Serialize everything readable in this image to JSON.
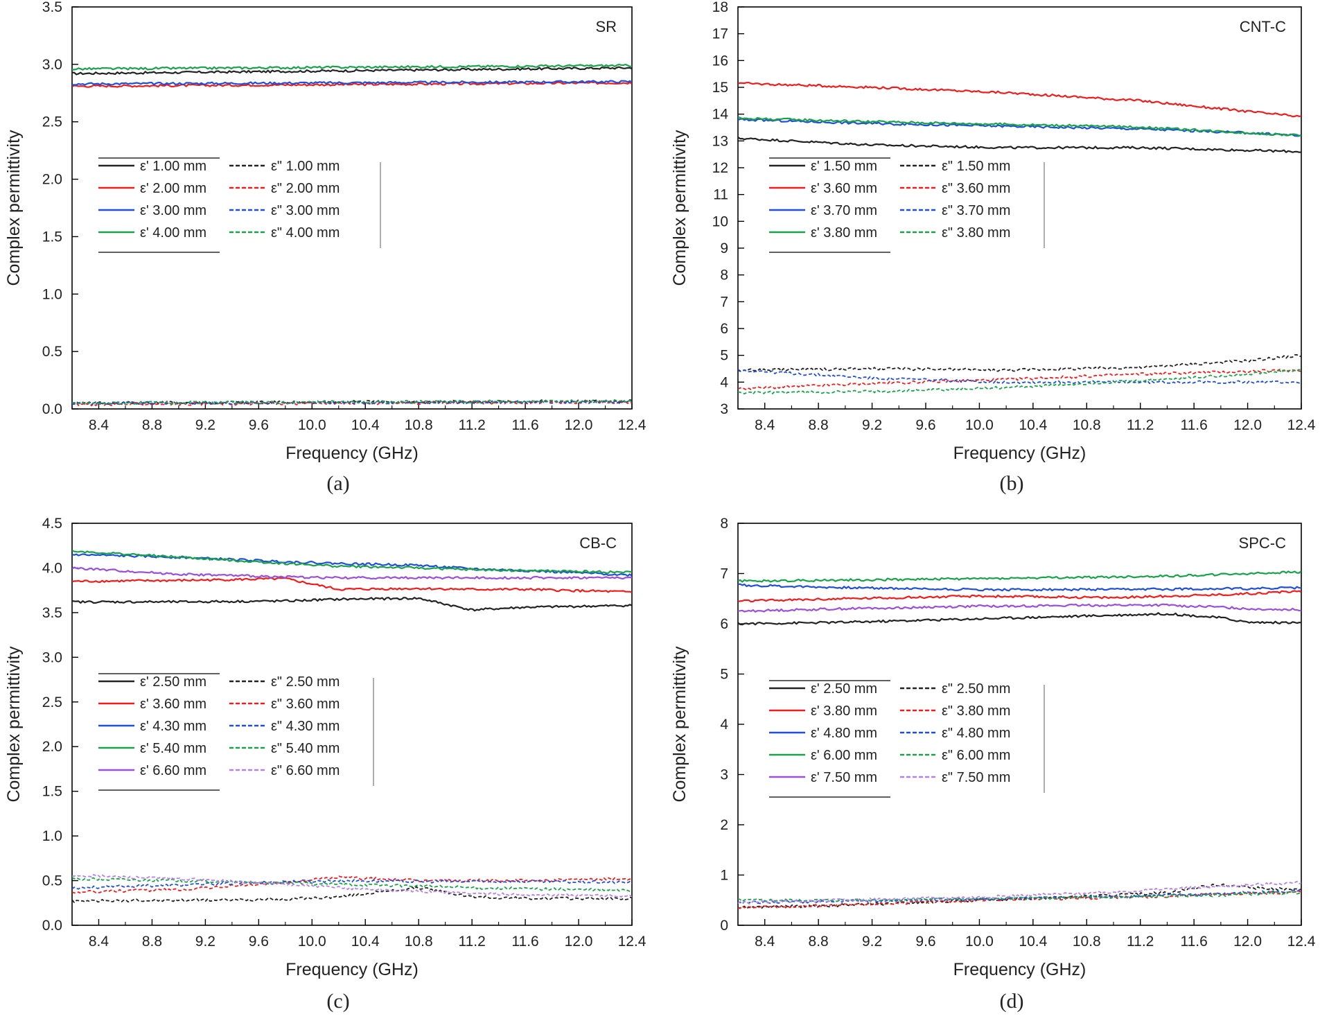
{
  "chart_data": [
    {
      "type": "line",
      "panel": "a",
      "caption": "(a)",
      "title": "SR",
      "xlabel": "Frequency (GHz)",
      "ylabel": "Complex permittivity",
      "xlim": [
        8.2,
        12.4
      ],
      "ylim": [
        0,
        3.5
      ],
      "xticks": [
        "8.4",
        "8.8",
        "9.2",
        "9.6",
        "10.0",
        "10.4",
        "10.8",
        "11.2",
        "11.6",
        "12.0",
        "12.4"
      ],
      "yticks": [
        "0.0",
        "0.5",
        "1.0",
        "1.5",
        "2.0",
        "2.5",
        "3.0",
        "3.5"
      ],
      "legend_placement": "center-left",
      "x": [
        8.2,
        12.4
      ],
      "series": [
        {
          "name": "ε' 1.00 mm",
          "color": "#222222",
          "dash": "solid",
          "values": [
            2.92,
            2.97
          ]
        },
        {
          "name": "ε' 2.00 mm",
          "color": "#ee1c1c",
          "dash": "solid",
          "values": [
            2.81,
            2.84
          ]
        },
        {
          "name": "ε' 3.00 mm",
          "color": "#1f4fd8",
          "dash": "solid",
          "values": [
            2.83,
            2.85
          ]
        },
        {
          "name": "ε' 4.00 mm",
          "color": "#1aa24a",
          "dash": "solid",
          "values": [
            2.96,
            2.99
          ]
        },
        {
          "name": "ε\" 1.00 mm",
          "color": "#222222",
          "dash": "dashed",
          "values": [
            0.05,
            0.07
          ]
        },
        {
          "name": "ε\" 2.00 mm",
          "color": "#ee1c1c",
          "dash": "dashed",
          "values": [
            0.04,
            0.06
          ]
        },
        {
          "name": "ε\" 3.00 mm",
          "color": "#1f4fd8",
          "dash": "dashed",
          "values": [
            0.05,
            0.06
          ]
        },
        {
          "name": "ε\" 4.00 mm",
          "color": "#1aa24a",
          "dash": "dashed",
          "values": [
            0.05,
            0.07
          ]
        }
      ]
    },
    {
      "type": "line",
      "panel": "b",
      "caption": "(b)",
      "title": "CNT-C",
      "xlabel": "Frequency (GHz)",
      "ylabel": "Complex permittivity",
      "xlim": [
        8.2,
        12.4
      ],
      "ylim": [
        3,
        18
      ],
      "xticks": [
        "8.4",
        "8.8",
        "9.2",
        "9.6",
        "10.0",
        "10.4",
        "10.8",
        "11.2",
        "11.6",
        "12.0",
        "12.4"
      ],
      "yticks": [
        "3",
        "4",
        "5",
        "6",
        "7",
        "8",
        "9",
        "10",
        "11",
        "12",
        "13",
        "14",
        "15",
        "16",
        "17",
        "18"
      ],
      "legend_placement": "center-left",
      "x": [
        8.2,
        9.2,
        10.2,
        11.2,
        12.0,
        12.4
      ],
      "series": [
        {
          "name": "ε' 1.50 mm",
          "color": "#222222",
          "dash": "solid",
          "values": [
            13.1,
            12.85,
            12.75,
            12.75,
            12.65,
            12.6
          ]
        },
        {
          "name": "ε' 3.60 mm",
          "color": "#ee1c1c",
          "dash": "solid",
          "values": [
            15.15,
            15.0,
            14.8,
            14.5,
            14.1,
            13.9
          ]
        },
        {
          "name": "ε' 3.70 mm",
          "color": "#1f4fd8",
          "dash": "solid",
          "values": [
            13.8,
            13.65,
            13.55,
            13.45,
            13.3,
            13.2
          ]
        },
        {
          "name": "ε' 3.80 mm",
          "color": "#1aa24a",
          "dash": "solid",
          "values": [
            13.85,
            13.72,
            13.62,
            13.52,
            13.3,
            13.2
          ]
        },
        {
          "name": "ε\" 1.50 mm",
          "color": "#222222",
          "dash": "dashed",
          "values": [
            4.45,
            4.5,
            4.45,
            4.55,
            4.8,
            5.0
          ]
        },
        {
          "name": "ε\" 3.60 mm",
          "color": "#ee1c1c",
          "dash": "dashed",
          "values": [
            3.75,
            3.95,
            4.1,
            4.3,
            4.4,
            4.45
          ]
        },
        {
          "name": "ε\" 3.70 mm",
          "color": "#1f4fd8",
          "dash": "dashed",
          "values": [
            4.45,
            4.15,
            4.0,
            4.0,
            4.0,
            4.0
          ]
        },
        {
          "name": "ε\" 3.80 mm",
          "color": "#1aa24a",
          "dash": "dashed",
          "values": [
            3.6,
            3.65,
            3.8,
            4.05,
            4.3,
            4.45
          ]
        }
      ]
    },
    {
      "type": "line",
      "panel": "c",
      "caption": "(c)",
      "title": "CB-C",
      "xlabel": "Frequency (GHz)",
      "ylabel": "Complex permittivity",
      "xlim": [
        8.2,
        12.4
      ],
      "ylim": [
        0,
        4.5
      ],
      "xticks": [
        "8.4",
        "8.8",
        "9.2",
        "9.6",
        "10.0",
        "10.4",
        "10.8",
        "11.2",
        "11.6",
        "12.0",
        "12.4"
      ],
      "yticks": [
        "0.0",
        "0.5",
        "1.0",
        "1.5",
        "2.0",
        "2.5",
        "3.0",
        "3.5",
        "4.0",
        "4.5"
      ],
      "legend_placement": "center-left",
      "x": [
        8.2,
        9.0,
        9.8,
        10.2,
        10.8,
        11.2,
        11.6,
        12.4
      ],
      "series": [
        {
          "name": "ε' 2.50 mm",
          "color": "#222222",
          "dash": "solid",
          "values": [
            3.62,
            3.62,
            3.63,
            3.65,
            3.66,
            3.53,
            3.56,
            3.58
          ]
        },
        {
          "name": "ε' 3.60 mm",
          "color": "#ee1c1c",
          "dash": "solid",
          "values": [
            3.85,
            3.86,
            3.88,
            3.76,
            3.77,
            3.76,
            3.76,
            3.73
          ]
        },
        {
          "name": "ε' 4.30 mm",
          "color": "#1f4fd8",
          "dash": "solid",
          "values": [
            4.15,
            4.12,
            4.07,
            4.05,
            4.03,
            3.99,
            3.97,
            3.92
          ]
        },
        {
          "name": "ε' 5.40 mm",
          "color": "#1aa24a",
          "dash": "solid",
          "values": [
            4.19,
            4.12,
            4.05,
            4.02,
            4.0,
            3.98,
            3.97,
            3.95
          ]
        },
        {
          "name": "ε' 6.60 mm",
          "color": "#9b4fd9",
          "dash": "solid",
          "values": [
            4.0,
            3.93,
            3.9,
            3.89,
            3.89,
            3.89,
            3.89,
            3.89
          ]
        },
        {
          "name": "ε\" 2.50 mm",
          "color": "#222222",
          "dash": "dashed",
          "values": [
            0.27,
            0.28,
            0.29,
            0.32,
            0.42,
            0.32,
            0.3,
            0.3
          ]
        },
        {
          "name": "ε\" 3.60 mm",
          "color": "#ee1c1c",
          "dash": "dashed",
          "values": [
            0.37,
            0.4,
            0.48,
            0.54,
            0.5,
            0.5,
            0.5,
            0.52
          ]
        },
        {
          "name": "ε\" 4.30 mm",
          "color": "#1f4fd8",
          "dash": "dashed",
          "values": [
            0.42,
            0.45,
            0.49,
            0.5,
            0.49,
            0.49,
            0.49,
            0.48
          ]
        },
        {
          "name": "ε\" 5.40 mm",
          "color": "#1aa24a",
          "dash": "dashed",
          "values": [
            0.52,
            0.5,
            0.47,
            0.46,
            0.44,
            0.42,
            0.41,
            0.39
          ]
        },
        {
          "name": "ε\" 6.60 mm",
          "color": "#b681e6",
          "dash": "dashed",
          "values": [
            0.56,
            0.52,
            0.46,
            0.42,
            0.38,
            0.36,
            0.34,
            0.33
          ]
        }
      ]
    },
    {
      "type": "line",
      "panel": "d",
      "caption": "(d)",
      "title": "SPC-C",
      "xlabel": "Frequency (GHz)",
      "ylabel": "Complex permittivity",
      "xlim": [
        8.2,
        12.4
      ],
      "ylim": [
        0,
        8
      ],
      "xticks": [
        "8.4",
        "8.8",
        "9.2",
        "9.6",
        "10.0",
        "10.4",
        "10.8",
        "11.2",
        "11.6",
        "12.0",
        "12.4"
      ],
      "yticks": [
        "0",
        "1",
        "2",
        "3",
        "4",
        "5",
        "6",
        "7",
        "8"
      ],
      "legend_placement": "center-left",
      "x": [
        8.2,
        9.0,
        10.0,
        11.0,
        11.4,
        11.8,
        12.0,
        12.4
      ],
      "series": [
        {
          "name": "ε' 2.50 mm",
          "color": "#222222",
          "dash": "solid",
          "values": [
            6.0,
            6.03,
            6.1,
            6.17,
            6.2,
            6.12,
            6.03,
            6.02
          ]
        },
        {
          "name": "ε' 3.80 mm",
          "color": "#ee1c1c",
          "dash": "solid",
          "values": [
            6.45,
            6.5,
            6.55,
            6.52,
            6.55,
            6.58,
            6.6,
            6.65
          ]
        },
        {
          "name": "ε' 4.80 mm",
          "color": "#1f4fd8",
          "dash": "solid",
          "values": [
            6.77,
            6.72,
            6.68,
            6.68,
            6.69,
            6.7,
            6.7,
            6.72
          ]
        },
        {
          "name": "ε' 6.00 mm",
          "color": "#1aa24a",
          "dash": "solid",
          "values": [
            6.85,
            6.87,
            6.9,
            6.93,
            6.95,
            6.98,
            7.0,
            7.03
          ]
        },
        {
          "name": "ε' 7.50 mm",
          "color": "#9b4fd9",
          "dash": "solid",
          "values": [
            6.25,
            6.3,
            6.35,
            6.37,
            6.37,
            6.33,
            6.3,
            6.28
          ]
        },
        {
          "name": "ε\" 2.50 mm",
          "color": "#222222",
          "dash": "dashed",
          "values": [
            0.35,
            0.4,
            0.5,
            0.6,
            0.65,
            0.82,
            0.75,
            0.7
          ]
        },
        {
          "name": "ε\" 3.80 mm",
          "color": "#ee1c1c",
          "dash": "dashed",
          "values": [
            0.35,
            0.4,
            0.5,
            0.55,
            0.58,
            0.62,
            0.64,
            0.66
          ]
        },
        {
          "name": "ε\" 4.80 mm",
          "color": "#1f4fd8",
          "dash": "dashed",
          "values": [
            0.45,
            0.48,
            0.52,
            0.57,
            0.6,
            0.63,
            0.65,
            0.68
          ]
        },
        {
          "name": "ε\" 6.00 mm",
          "color": "#1aa24a",
          "dash": "dashed",
          "values": [
            0.5,
            0.5,
            0.53,
            0.56,
            0.58,
            0.6,
            0.62,
            0.65
          ]
        },
        {
          "name": "ε\" 7.50 mm",
          "color": "#b681e6",
          "dash": "dashed",
          "values": [
            0.45,
            0.5,
            0.56,
            0.66,
            0.72,
            0.77,
            0.8,
            0.85
          ]
        }
      ]
    }
  ]
}
